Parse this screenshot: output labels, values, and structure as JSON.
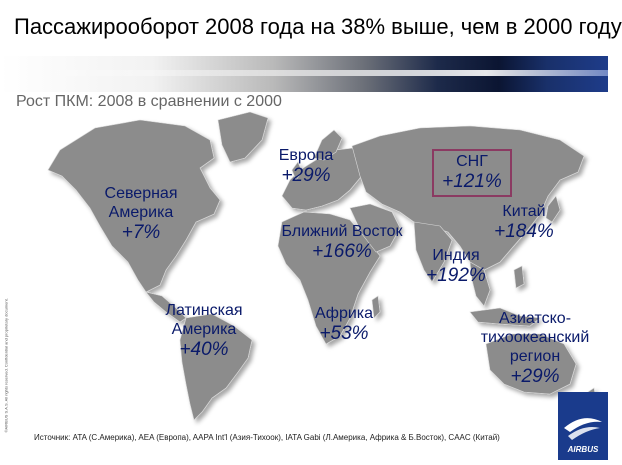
{
  "title": "Пассажирооборот 2008 года на 38% выше, чем в 2000 году",
  "subtitle": "Рост ПКМ: 2008 в сравнении с 2000",
  "regions": [
    {
      "name": "Европа",
      "value": "+29%"
    },
    {
      "name": "СНГ",
      "value": "+121%"
    },
    {
      "name": "Северная Америка",
      "value": "+7%"
    },
    {
      "name": "Китай",
      "value": "+184%"
    },
    {
      "name": "Ближний Восток",
      "value": "+166%"
    },
    {
      "name": "Индия",
      "value": "+192%"
    },
    {
      "name": "Латинская Америка",
      "value": "+40%"
    },
    {
      "name": "Африка",
      "value": "+53%"
    },
    {
      "name": "Азиатско-тихоокеанский регион",
      "value": "+29%"
    }
  ],
  "source": "Источник: ATA (С.Америка), AEA (Европа), AAPA Int'l (Азия-Тихоок), IATA Gabi (Л.Америка, Африка & Б.Восток), CAAC (Китай)",
  "vertical_note": "©AIRBUS S.A.S. All rights reserved. Confidential and proprietary document.",
  "logo_text": "AIRBUS",
  "colors": {
    "label": "#0a1a6a",
    "highlight_box": "#8b3a62",
    "land": "#8c8c8c"
  }
}
